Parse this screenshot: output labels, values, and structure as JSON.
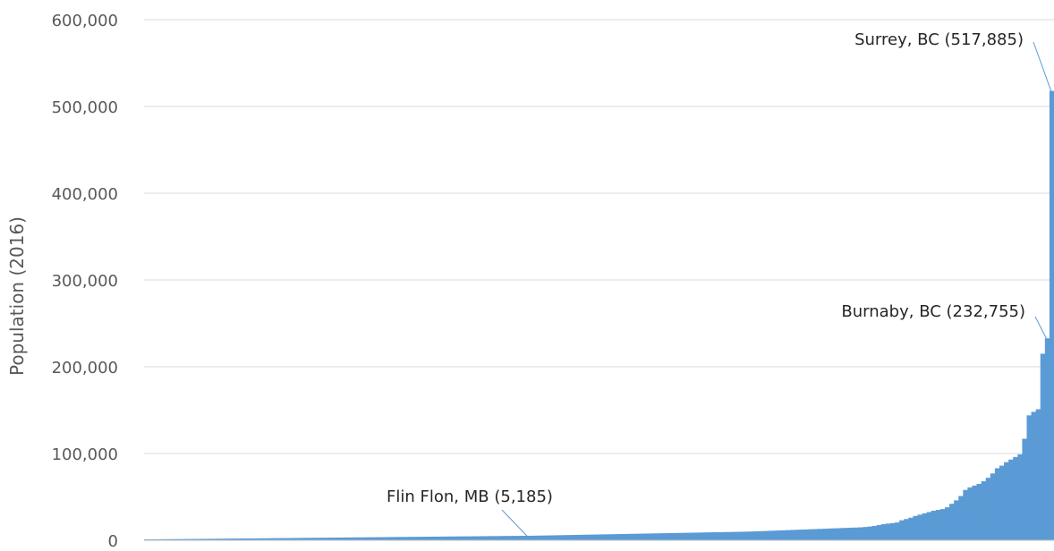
{
  "chart_data": {
    "type": "bar",
    "ylabel": "Population (2016)",
    "ylim": [
      0,
      600000
    ],
    "y_ticks": [
      0,
      100000,
      200000,
      300000,
      400000,
      500000,
      600000
    ],
    "y_tick_labels": [
      "0",
      "100,000",
      "200,000",
      "300,000",
      "400,000",
      "500,000",
      "600,000"
    ],
    "grid": true,
    "bar_color": "#5b9bd5",
    "sorted_ascending": true,
    "annotations": [
      {
        "label": "Flin Flon, MB (5,185)",
        "value": 5185
      },
      {
        "label": "Burnaby, BC (232,755)",
        "value": 232755
      },
      {
        "label": "Surrey, BC (517,885)",
        "value": 517885
      }
    ],
    "values": [
      1000,
      1050,
      1100,
      1150,
      1200,
      1250,
      1300,
      1350,
      1400,
      1450,
      1500,
      1550,
      1600,
      1650,
      1700,
      1750,
      1800,
      1850,
      1900,
      1950,
      2000,
      2050,
      2100,
      2150,
      2200,
      2250,
      2300,
      2350,
      2400,
      2450,
      2500,
      2550,
      2600,
      2650,
      2700,
      2750,
      2800,
      2850,
      2900,
      2950,
      3000,
      3050,
      3100,
      3150,
      3200,
      3250,
      3300,
      3350,
      3400,
      3450,
      3500,
      3550,
      3600,
      3650,
      3700,
      3750,
      3800,
      3850,
      3900,
      3950,
      4000,
      4050,
      4100,
      4150,
      4200,
      4250,
      4300,
      4350,
      4400,
      4450,
      4500,
      4550,
      4600,
      4650,
      4700,
      4750,
      4800,
      4850,
      4900,
      4950,
      5000,
      5050,
      5100,
      5150,
      5185,
      5250,
      5350,
      5450,
      5550,
      5650,
      5750,
      5850,
      5950,
      6050,
      6150,
      6250,
      6350,
      6450,
      6550,
      6650,
      6750,
      6850,
      6950,
      7050,
      7150,
      7250,
      7350,
      7450,
      7550,
      7650,
      7750,
      7850,
      7950,
      8050,
      8150,
      8250,
      8350,
      8450,
      8550,
      8650,
      8750,
      8850,
      8950,
      9050,
      9150,
      9250,
      9350,
      9450,
      9550,
      9650,
      9750,
      9850,
      9950,
      10100,
      10300,
      10500,
      10700,
      10900,
      11100,
      11300,
      11500,
      11700,
      11900,
      12100,
      12300,
      12500,
      12700,
      12900,
      13100,
      13300,
      13500,
      13700,
      13900,
      14100,
      14300,
      14500,
      14700,
      14900,
      15300,
      15800,
      16500,
      17500,
      18500,
      19200,
      19800,
      20500,
      23000,
      24500,
      26000,
      28000,
      29500,
      31000,
      32500,
      34000,
      35000,
      36000,
      38000,
      42000,
      46000,
      51000,
      58000,
      61000,
      63000,
      65000,
      68000,
      72000,
      77000,
      83000,
      86000,
      90000,
      93000,
      96000,
      99000,
      117000,
      144000,
      148000,
      151000,
      215000,
      232755,
      517885
    ]
  }
}
